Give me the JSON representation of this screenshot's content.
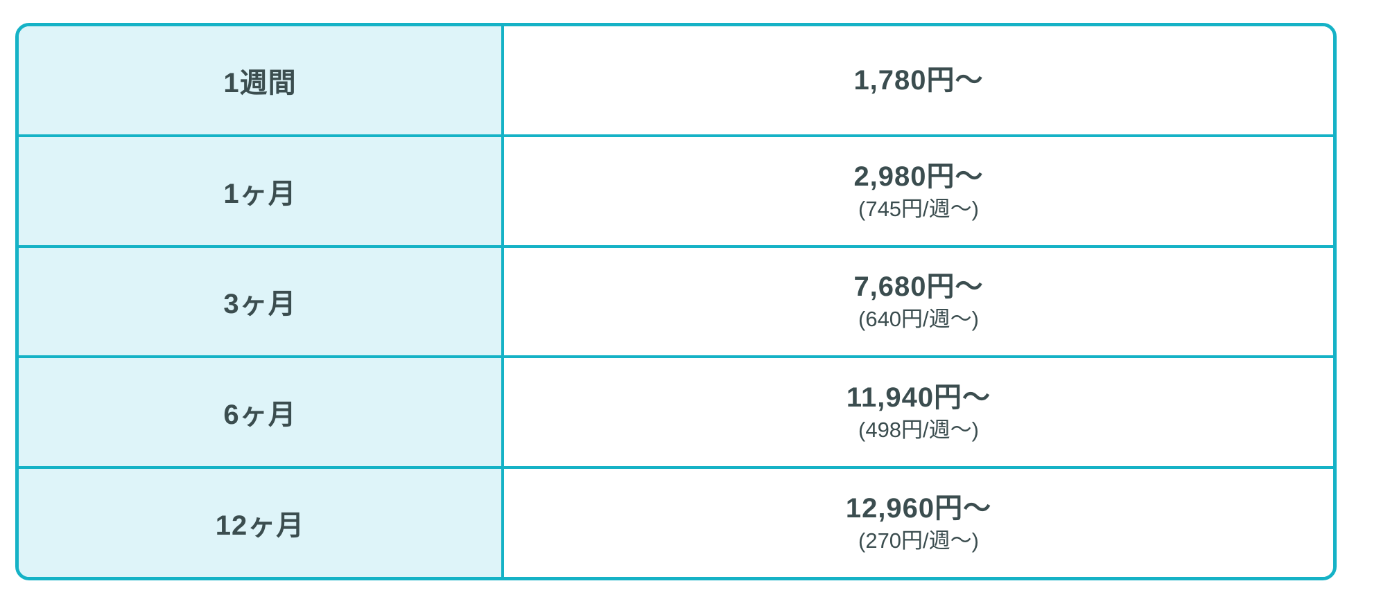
{
  "chart_data": {
    "type": "table",
    "title": "",
    "rows": [
      {
        "period": "1週間",
        "price": "1,780円〜",
        "per_week": ""
      },
      {
        "period": "1ヶ月",
        "price": "2,980円〜",
        "per_week": "(745円/週〜)"
      },
      {
        "period": "3ヶ月",
        "price": "7,680円〜",
        "per_week": "(640円/週〜)"
      },
      {
        "period": "6ヶ月",
        "price": "11,940円〜",
        "per_week": "(498円/週〜)"
      },
      {
        "period": "12ヶ月",
        "price": "12,960円〜",
        "per_week": "(270円/週〜)"
      }
    ]
  },
  "colors": {
    "accent_border": "#15b2c6",
    "period_cell_background": "#def4f9",
    "price_cell_background": "#ffffff",
    "text": "#3b4d4f"
  }
}
